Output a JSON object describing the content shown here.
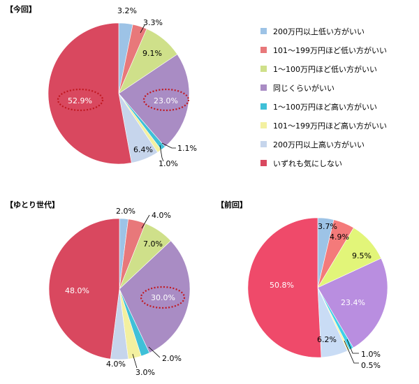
{
  "legend": [
    {
      "label": "200万円以上低い方がいい",
      "color": "#9dc3e6"
    },
    {
      "label": "101〜199万円ほど低い方がいい",
      "color": "#e8787a"
    },
    {
      "label": "1〜100万円ほど低い方がいい",
      "color": "#cfe08a"
    },
    {
      "label": "同じくらいがいい",
      "color": "#a98cc4"
    },
    {
      "label": "1〜100万円ほど高い方がいい",
      "color": "#3fc0d8"
    },
    {
      "label": "101〜199万円ほど高い方がいい",
      "color": "#f3f0a0"
    },
    {
      "label": "200万円以上高い方がいい",
      "color": "#c6d5ec"
    },
    {
      "label": "いずれも気にしない",
      "color": "#d9485f"
    }
  ],
  "chart_data": [
    {
      "type": "pie",
      "title": "【今回】",
      "values": [
        3.2,
        3.3,
        9.1,
        23.0,
        1.1,
        1.0,
        6.4,
        52.9
      ],
      "labels": [
        "3.2%",
        "3.3%",
        "9.1%",
        "23.0%",
        "1.1%",
        "1.0%",
        "6.4%",
        "52.9%"
      ],
      "colors": [
        "#9dc3e6",
        "#e8787a",
        "#cfe08a",
        "#a98cc4",
        "#3fc0d8",
        "#f3f0a0",
        "#c6d5ec",
        "#d9485f"
      ],
      "highlighted": [
        3,
        7
      ]
    },
    {
      "type": "pie",
      "title": "【ゆとり世代】",
      "values": [
        2.0,
        4.0,
        7.0,
        30.0,
        2.0,
        3.0,
        4.0,
        48.0
      ],
      "labels": [
        "2.0%",
        "4.0%",
        "7.0%",
        "30.0%",
        "2.0%",
        "3.0%",
        "4.0%",
        "48.0%"
      ],
      "colors": [
        "#9dc3e6",
        "#e8787a",
        "#cfe08a",
        "#a98cc4",
        "#3fc0d8",
        "#f3f0a0",
        "#c6d5ec",
        "#d9485f"
      ],
      "highlighted": [
        3
      ]
    },
    {
      "type": "pie",
      "title": "【前回】",
      "values": [
        3.7,
        4.9,
        9.5,
        23.4,
        1.0,
        0.5,
        6.2,
        50.8
      ],
      "labels": [
        "3.7%",
        "4.9%",
        "9.5%",
        "23.4%",
        "1.0%",
        "0.5%",
        "6.2%",
        "50.8%"
      ],
      "colors": [
        "#9dc3e6",
        "#f47a7a",
        "#e2f579",
        "#b98ee0",
        "#3fd0e8",
        "#f8f5a8",
        "#c9dcf5",
        "#ef4a6a"
      ],
      "highlighted": []
    }
  ]
}
